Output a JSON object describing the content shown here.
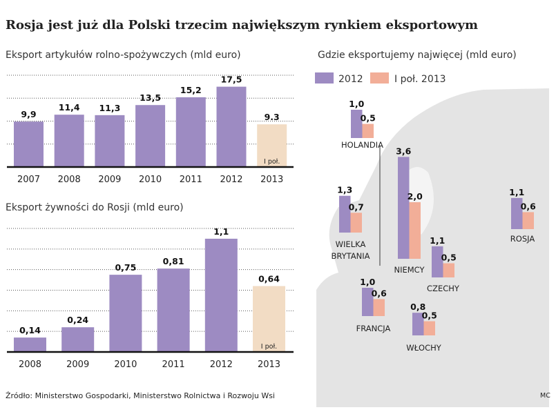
{
  "title": "Rosja jest już dla Polski trzecim największym rynkiem eksportowym",
  "source": "Źródło: Ministerstwo Gospodarki, Ministerstwo Rolnictwa i Rozwoju Wsi",
  "credit": "MC",
  "colors": {
    "purple": "#9d8bc2",
    "beige": "#f2dcc4",
    "salmon": "#f2ae98",
    "map": "#e4e4e4"
  },
  "chart_data": [
    {
      "type": "bar",
      "title": "Eksport artykułów rolno-spożywczych (mld euro)",
      "categories": [
        "2007",
        "2008",
        "2009",
        "2010",
        "2011",
        "2012",
        "2013"
      ],
      "values": [
        9.9,
        11.4,
        11.3,
        13.5,
        15.2,
        17.5,
        9.3
      ],
      "value_labels": [
        "9,9",
        "11,4",
        "11,3",
        "13,5",
        "15,2",
        "17,5",
        "9.3"
      ],
      "partial_note": "I poł.",
      "partial_index": 6,
      "ylim": [
        0,
        20
      ],
      "grid": true
    },
    {
      "type": "bar",
      "title": "Eksport żywności do Rosji (mld euro)",
      "categories": [
        "2008",
        "2009",
        "2010",
        "2011",
        "2012",
        "2013"
      ],
      "values": [
        0.14,
        0.24,
        0.75,
        0.81,
        1.1,
        0.64
      ],
      "value_labels": [
        "0,14",
        "0,24",
        "0,75",
        "0,81",
        "1,1",
        "0,64"
      ],
      "partial_note": "I poł.",
      "partial_index": 5,
      "ylim": [
        0,
        1.2
      ],
      "grid": true
    },
    {
      "type": "bar",
      "title": "Gdzie eksportujemy najwięcej (mld euro)",
      "legend": [
        "2012",
        "I poł. 2013"
      ],
      "legend_placement": "top-left",
      "background": "map of Europe",
      "groups": [
        {
          "country": "HOLANDIA",
          "values": [
            1.0,
            0.5
          ],
          "labels": [
            "1,0",
            "0,5"
          ]
        },
        {
          "country": "NIEMCY",
          "values": [
            3.6,
            2.0
          ],
          "labels": [
            "3,6",
            "2,0"
          ]
        },
        {
          "country": "WIELKA BRYTANIA",
          "values": [
            1.3,
            0.7
          ],
          "labels": [
            "1,3",
            "0,7"
          ]
        },
        {
          "country": "ROSJA",
          "values": [
            1.1,
            0.6
          ],
          "labels": [
            "1,1",
            "0,6"
          ]
        },
        {
          "country": "CZECHY",
          "values": [
            1.1,
            0.5
          ],
          "labels": [
            "1,1",
            "0,5"
          ]
        },
        {
          "country": "FRANCJA",
          "values": [
            1.0,
            0.6
          ],
          "labels": [
            "1,0",
            "0,6"
          ]
        },
        {
          "country": "WŁOCHY",
          "values": [
            0.8,
            0.5
          ],
          "labels": [
            "0,8",
            "0,5"
          ]
        }
      ]
    }
  ]
}
